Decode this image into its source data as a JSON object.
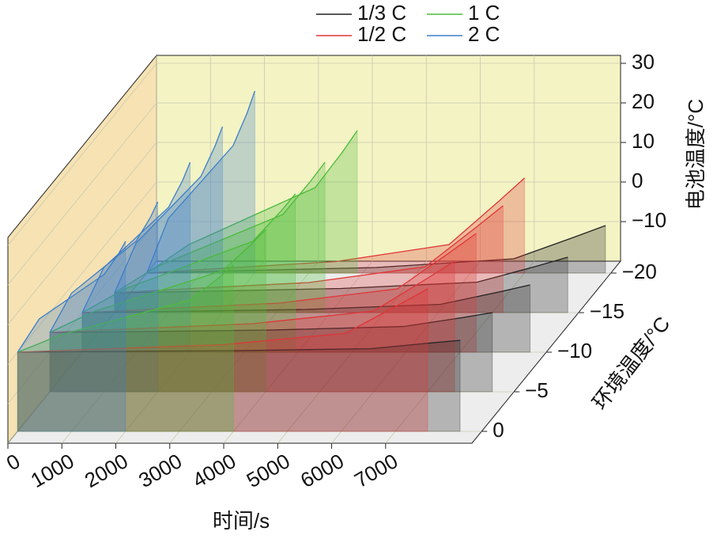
{
  "chart_data": {
    "type": "waterfall3d",
    "xlabel": "时间/s",
    "ylabel": "电池温度/°C",
    "zlabel": "环境温度/°C",
    "xlim": [
      0,
      8600
    ],
    "xticks": [
      0,
      1000,
      2000,
      3000,
      4000,
      5000,
      6000,
      7000
    ],
    "ylim": [
      -20,
      32
    ],
    "yticks": [
      {
        "value": -10,
        "label": "−10"
      },
      0,
      10,
      20,
      30
    ],
    "zlim": [
      1.5,
      -21.5
    ],
    "zticks": [
      0,
      {
        "value": -5,
        "label": "−5"
      },
      {
        "value": -10,
        "label": "−10"
      },
      {
        "value": -15,
        "label": "−15"
      },
      {
        "value": -20,
        "label": "−20"
      }
    ],
    "grid": true,
    "series": [
      {
        "name": "1/3 C",
        "color": "#222222",
        "x": [
          [
            0,
            1640,
            4100,
            6560,
            7626,
            8200
          ],
          [
            0,
            1640,
            4100,
            6560,
            7626,
            8200
          ],
          [
            0,
            1660,
            4150,
            6640,
            7719,
            8300
          ],
          [
            0,
            1680,
            4200,
            6720,
            7812,
            8400
          ],
          [
            0,
            1700,
            4250,
            6800,
            7905,
            8500
          ]
        ],
        "values": [
          [
            0,
            0.2,
            0.4,
            0.9,
            2.3,
            3
          ],
          [
            -5,
            -4.8,
            -4.4,
            -3.5,
            -1.3,
            0
          ],
          [
            -10,
            -9.7,
            -9.2,
            -7.9,
            -4.8,
            -3
          ],
          [
            -15,
            -14.6,
            -13.9,
            -12.3,
            -8.3,
            -6
          ],
          [
            -20,
            -19.4,
            -18.6,
            -16.4,
            -11,
            -8
          ]
        ]
      },
      {
        "name": "1/2 C",
        "color": "#e03535",
        "x": [
          [
            0,
            1520,
            3800,
            6080,
            7068,
            7600
          ],
          [
            0,
            1500,
            3750,
            6000,
            6975,
            7500
          ],
          [
            0,
            1460,
            3650,
            5840,
            6789,
            7300
          ],
          [
            0,
            1440,
            3600,
            5760,
            6696,
            7200
          ],
          [
            0,
            1400,
            3500,
            5600,
            6510,
            7000
          ]
        ],
        "values": [
          [
            0,
            0.8,
            1.9,
            4.8,
            12,
            16
          ],
          [
            -5,
            -4.1,
            -2.8,
            0.4,
            8.5,
            13
          ],
          [
            -10,
            -9,
            -7.6,
            -4,
            5,
            10
          ],
          [
            -15,
            -13.9,
            -12.4,
            -8.4,
            1.5,
            7
          ],
          [
            -20,
            -18.8,
            -17.1,
            -12.8,
            -2,
            4
          ]
        ]
      },
      {
        "name": "1 C",
        "color": "#4cbb3a",
        "x": [
          [
            0,
            800,
            2000,
            3200,
            3720,
            4000
          ],
          [
            0,
            800,
            2000,
            3200,
            3720,
            4000
          ],
          [
            0,
            790,
            1975,
            3160,
            3674,
            3950
          ],
          [
            0,
            780,
            1950,
            3120,
            3627,
            3900
          ],
          [
            0,
            780,
            1950,
            3120,
            3627,
            3900
          ]
        ],
        "values": [
          [
            0,
            4.4,
            8.8,
            13.2,
            18.7,
            22
          ],
          [
            -5,
            0.2,
            5.4,
            10.6,
            17.1,
            21
          ],
          [
            -10,
            -4,
            2,
            8,
            15.5,
            20
          ],
          [
            -15,
            -8.4,
            -1.8,
            4.8,
            13.1,
            18
          ],
          [
            -20,
            -12.8,
            -5.6,
            1.6,
            10.6,
            16
          ]
        ]
      },
      {
        "name": "2 C",
        "color": "#3d7fc8",
        "x": [
          [
            0,
            400,
            1000,
            1600,
            1860,
            2000
          ],
          [
            0,
            400,
            1000,
            1600,
            1860,
            2000
          ],
          [
            0,
            400,
            1000,
            1600,
            1860,
            2000
          ],
          [
            0,
            400,
            1000,
            1600,
            1860,
            2000
          ],
          [
            0,
            400,
            1000,
            1600,
            1860,
            2000
          ]
        ],
        "values": [
          [
            0,
            8.4,
            14,
            19.6,
            24.6,
            28
          ],
          [
            -5,
            4.9,
            11.5,
            18.1,
            24,
            28
          ],
          [
            -10,
            1.4,
            9,
            16.6,
            23.4,
            28
          ],
          [
            -15,
            -2.4,
            6,
            14.4,
            22,
            27
          ],
          [
            -20,
            -6.2,
            3,
            12.2,
            20.5,
            26
          ]
        ]
      }
    ]
  }
}
